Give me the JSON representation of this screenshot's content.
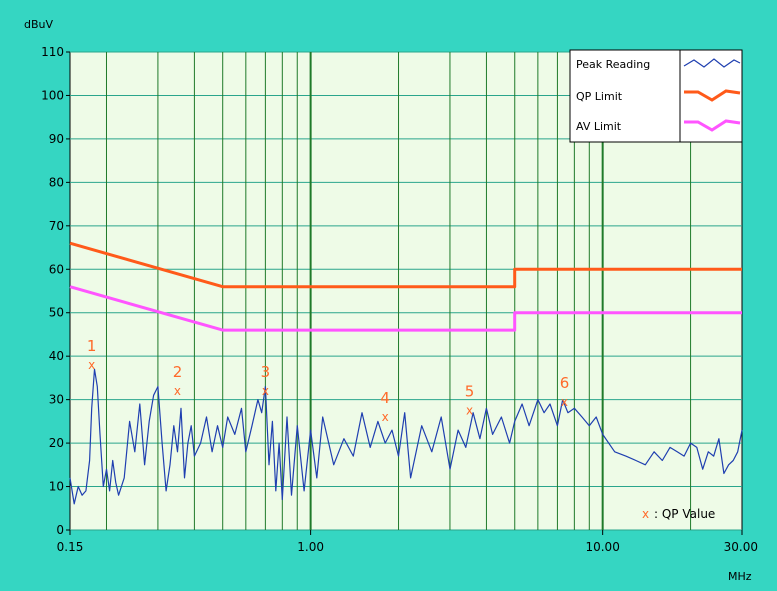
{
  "chart_data": {
    "type": "line",
    "ylabel": "dBuV",
    "xlabel": "MHz",
    "x_scale": "log",
    "xlim": [
      0.15,
      30.0
    ],
    "ylim": [
      0,
      110
    ],
    "x_ticks": [
      "0.15",
      "1.00",
      "10.00",
      "30.00"
    ],
    "y_ticks": [
      "0",
      "10",
      "20",
      "30",
      "40",
      "50",
      "60",
      "70",
      "80",
      "90",
      "100",
      "110"
    ],
    "grid": true,
    "legend_position": "top-right",
    "legend": [
      {
        "name": "Peak Reading",
        "color": "#1f3fb0"
      },
      {
        "name": "QP Limit",
        "color": "#ff5a1a"
      },
      {
        "name": "AV Limit",
        "color": "#ff55ff"
      }
    ],
    "series": [
      {
        "name": "QP Limit",
        "color": "#ff5a1a",
        "x": [
          0.15,
          0.5,
          0.5,
          5.0,
          5.0,
          30.0
        ],
        "y": [
          66,
          56,
          56,
          56,
          60,
          60
        ]
      },
      {
        "name": "AV Limit",
        "color": "#ff55ff",
        "x": [
          0.15,
          0.5,
          0.5,
          5.0,
          5.0,
          30.0
        ],
        "y": [
          56,
          46,
          46,
          46,
          50,
          50
        ]
      },
      {
        "name": "Peak Reading",
        "color": "#1f3fb0",
        "x": [
          0.15,
          0.155,
          0.16,
          0.165,
          0.17,
          0.175,
          0.178,
          0.182,
          0.186,
          0.19,
          0.195,
          0.2,
          0.205,
          0.21,
          0.215,
          0.22,
          0.23,
          0.24,
          0.25,
          0.26,
          0.27,
          0.28,
          0.29,
          0.3,
          0.31,
          0.32,
          0.33,
          0.34,
          0.35,
          0.36,
          0.37,
          0.38,
          0.39,
          0.4,
          0.42,
          0.44,
          0.46,
          0.48,
          0.5,
          0.52,
          0.55,
          0.58,
          0.6,
          0.63,
          0.66,
          0.68,
          0.7,
          0.72,
          0.74,
          0.76,
          0.78,
          0.8,
          0.83,
          0.86,
          0.9,
          0.95,
          1.0,
          1.05,
          1.1,
          1.2,
          1.3,
          1.4,
          1.5,
          1.6,
          1.7,
          1.8,
          1.9,
          2.0,
          2.1,
          2.2,
          2.4,
          2.6,
          2.8,
          3.0,
          3.2,
          3.4,
          3.6,
          3.8,
          4.0,
          4.2,
          4.5,
          4.8,
          5.0,
          5.3,
          5.6,
          6.0,
          6.3,
          6.6,
          7.0,
          7.3,
          7.6,
          8.0,
          8.5,
          9.0,
          9.5,
          10.0,
          11.0,
          12.0,
          13.0,
          14.0,
          15.0,
          16.0,
          17.0,
          18.0,
          19.0,
          20.0,
          21.0,
          22.0,
          23.0,
          24.0,
          25.0,
          26.0,
          27.0,
          28.0,
          29.0,
          30.0
        ],
        "y": [
          12,
          6,
          10,
          8,
          9,
          16,
          28,
          37,
          33,
          22,
          10,
          14,
          9,
          16,
          11,
          8,
          12,
          25,
          18,
          29,
          15,
          25,
          31,
          33,
          20,
          9,
          15,
          24,
          18,
          28,
          12,
          20,
          24,
          17,
          20,
          26,
          18,
          24,
          19,
          26,
          22,
          28,
          18,
          24,
          30,
          27,
          33,
          15,
          25,
          9,
          20,
          7,
          26,
          8,
          24,
          9,
          23,
          12,
          26,
          15,
          21,
          17,
          27,
          19,
          25,
          20,
          23,
          17,
          27,
          12,
          24,
          18,
          26,
          14,
          23,
          19,
          27,
          21,
          28,
          22,
          26,
          20,
          25,
          29,
          24,
          30,
          27,
          29,
          24,
          30,
          27,
          28,
          26,
          24,
          26,
          22,
          18,
          17,
          16,
          15,
          18,
          16,
          19,
          18,
          17,
          20,
          19,
          14,
          18,
          17,
          21,
          13,
          15,
          16,
          18,
          23
        ]
      }
    ],
    "qp_markers": [
      {
        "label": "1",
        "x": 0.178,
        "y": 38
      },
      {
        "label": "2",
        "x": 0.35,
        "y": 32
      },
      {
        "label": "3",
        "x": 0.7,
        "y": 32
      },
      {
        "label": "4",
        "x": 1.8,
        "y": 26
      },
      {
        "label": "5",
        "x": 3.5,
        "y": 27.5
      },
      {
        "label": "6",
        "x": 7.4,
        "y": 29.5
      }
    ]
  },
  "annotations": {
    "qp_note_symbol": "x",
    "qp_note_text": ": QP Value"
  }
}
